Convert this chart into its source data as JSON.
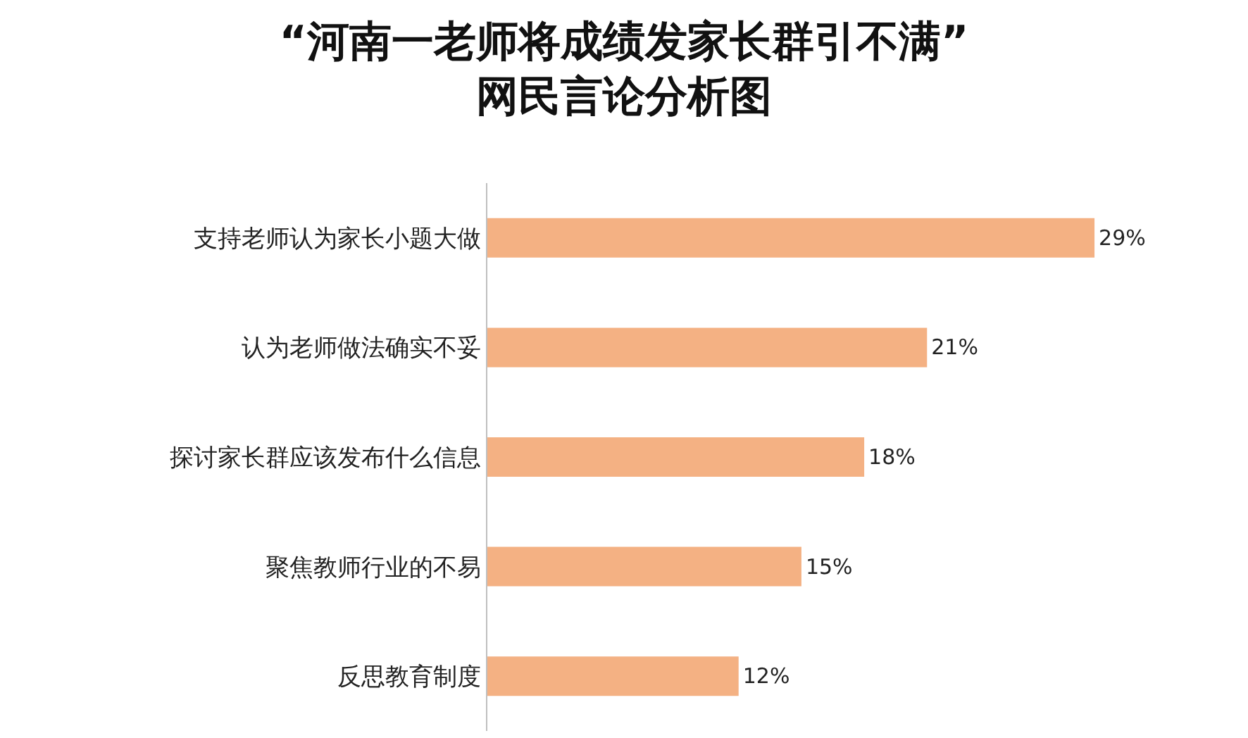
{
  "chart_data": {
    "type": "bar",
    "orientation": "horizontal",
    "title": "“河南一老师将成绩发家长群引不满”\n网民言论分析图",
    "categories": [
      "支持老师认为家长小题大做",
      "认为老师做法确实不妥",
      "探讨家长群应该发布什么信息",
      "聚焦教师行业的不易",
      "反思教育制度"
    ],
    "values": [
      29,
      21,
      18,
      15,
      12
    ],
    "value_labels": [
      "29%",
      "21%",
      "18%",
      "15%",
      "12%"
    ],
    "color": "#f4b183",
    "grid": false,
    "legend": false,
    "tick_labels": "y"
  }
}
